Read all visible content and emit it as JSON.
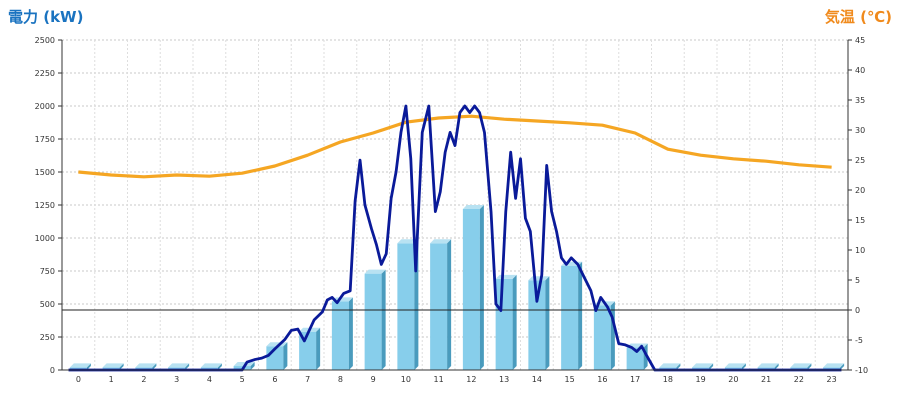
{
  "chart_data": {
    "type": "bar+line",
    "left_axis": {
      "label": "電力 (kW)",
      "min": 0,
      "max": 2500,
      "step": 250,
      "color": "#1a73c0"
    },
    "right_axis": {
      "label": "気温 (℃)",
      "min": -10,
      "max": 45,
      "step": 5,
      "color": "#f08a1c"
    },
    "grid": true,
    "categories": [
      "0",
      "1",
      "2",
      "3",
      "4",
      "5",
      "6",
      "7",
      "8",
      "9",
      "10",
      "11",
      "12",
      "13",
      "14",
      "15",
      "16",
      "17",
      "18",
      "19",
      "20",
      "21",
      "22",
      "23"
    ],
    "bars": {
      "axis": "left",
      "color": "#87ceeb",
      "values": [
        20,
        20,
        20,
        20,
        20,
        30,
        180,
        290,
        520,
        730,
        960,
        960,
        1220,
        690,
        680,
        790,
        490,
        170,
        20,
        20,
        20,
        20,
        20,
        20
      ]
    },
    "temperature": {
      "axis": "right",
      "color": "#f5a623",
      "values": [
        23,
        22.5,
        22.2,
        22.5,
        22.3,
        22.8,
        24,
        25.8,
        28,
        29.5,
        31.3,
        32,
        32.3,
        31.8,
        31.5,
        31.2,
        30.8,
        29.5,
        26.8,
        25.8,
        25.2,
        24.8,
        24.2,
        23.8
      ]
    },
    "power_line": {
      "axis": "left",
      "color": "#0a1a99",
      "points": [
        [
          -0.3,
          0
        ],
        [
          5,
          0
        ],
        [
          5.15,
          60
        ],
        [
          5.4,
          80
        ],
        [
          5.6,
          90
        ],
        [
          5.8,
          110
        ],
        [
          6.0,
          160
        ],
        [
          6.3,
          230
        ],
        [
          6.5,
          300
        ],
        [
          6.7,
          310
        ],
        [
          6.9,
          220
        ],
        [
          7.2,
          380
        ],
        [
          7.45,
          440
        ],
        [
          7.6,
          530
        ],
        [
          7.75,
          550
        ],
        [
          7.9,
          510
        ],
        [
          8.1,
          580
        ],
        [
          8.3,
          600
        ],
        [
          8.45,
          1280
        ],
        [
          8.6,
          1590
        ],
        [
          8.75,
          1250
        ],
        [
          8.95,
          1070
        ],
        [
          9.1,
          950
        ],
        [
          9.25,
          800
        ],
        [
          9.4,
          880
        ],
        [
          9.55,
          1300
        ],
        [
          9.7,
          1500
        ],
        [
          9.85,
          1800
        ],
        [
          10.0,
          2000
        ],
        [
          10.15,
          1600
        ],
        [
          10.3,
          750
        ],
        [
          10.5,
          1800
        ],
        [
          10.7,
          2000
        ],
        [
          10.9,
          1200
        ],
        [
          11.05,
          1350
        ],
        [
          11.2,
          1650
        ],
        [
          11.35,
          1800
        ],
        [
          11.5,
          1700
        ],
        [
          11.65,
          1950
        ],
        [
          11.8,
          2000
        ],
        [
          11.95,
          1950
        ],
        [
          12.1,
          2000
        ],
        [
          12.25,
          1950
        ],
        [
          12.4,
          1800
        ],
        [
          12.6,
          1200
        ],
        [
          12.75,
          500
        ],
        [
          12.9,
          450
        ],
        [
          13.05,
          1200
        ],
        [
          13.2,
          1650
        ],
        [
          13.35,
          1300
        ],
        [
          13.5,
          1600
        ],
        [
          13.65,
          1150
        ],
        [
          13.8,
          1050
        ],
        [
          14.0,
          520
        ],
        [
          14.15,
          720
        ],
        [
          14.3,
          1550
        ],
        [
          14.45,
          1200
        ],
        [
          14.6,
          1050
        ],
        [
          14.75,
          850
        ],
        [
          14.9,
          800
        ],
        [
          15.05,
          850
        ],
        [
          15.25,
          800
        ],
        [
          15.45,
          700
        ],
        [
          15.65,
          600
        ],
        [
          15.8,
          450
        ],
        [
          15.95,
          550
        ],
        [
          16.15,
          480
        ],
        [
          16.3,
          400
        ],
        [
          16.5,
          200
        ],
        [
          16.7,
          190
        ],
        [
          16.9,
          170
        ],
        [
          17.05,
          140
        ],
        [
          17.2,
          180
        ],
        [
          17.35,
          110
        ],
        [
          17.6,
          0
        ],
        [
          23.3,
          0
        ]
      ]
    },
    "tick_labels_left": [
      "0",
      "250",
      "500",
      "750",
      "1000",
      "1250",
      "1500",
      "1750",
      "2000",
      "2250",
      "2500"
    ],
    "tick_labels_right": [
      "-10",
      "-5",
      "0",
      "5",
      "10",
      "15",
      "20",
      "25",
      "30",
      "35",
      "40",
      "45"
    ]
  }
}
